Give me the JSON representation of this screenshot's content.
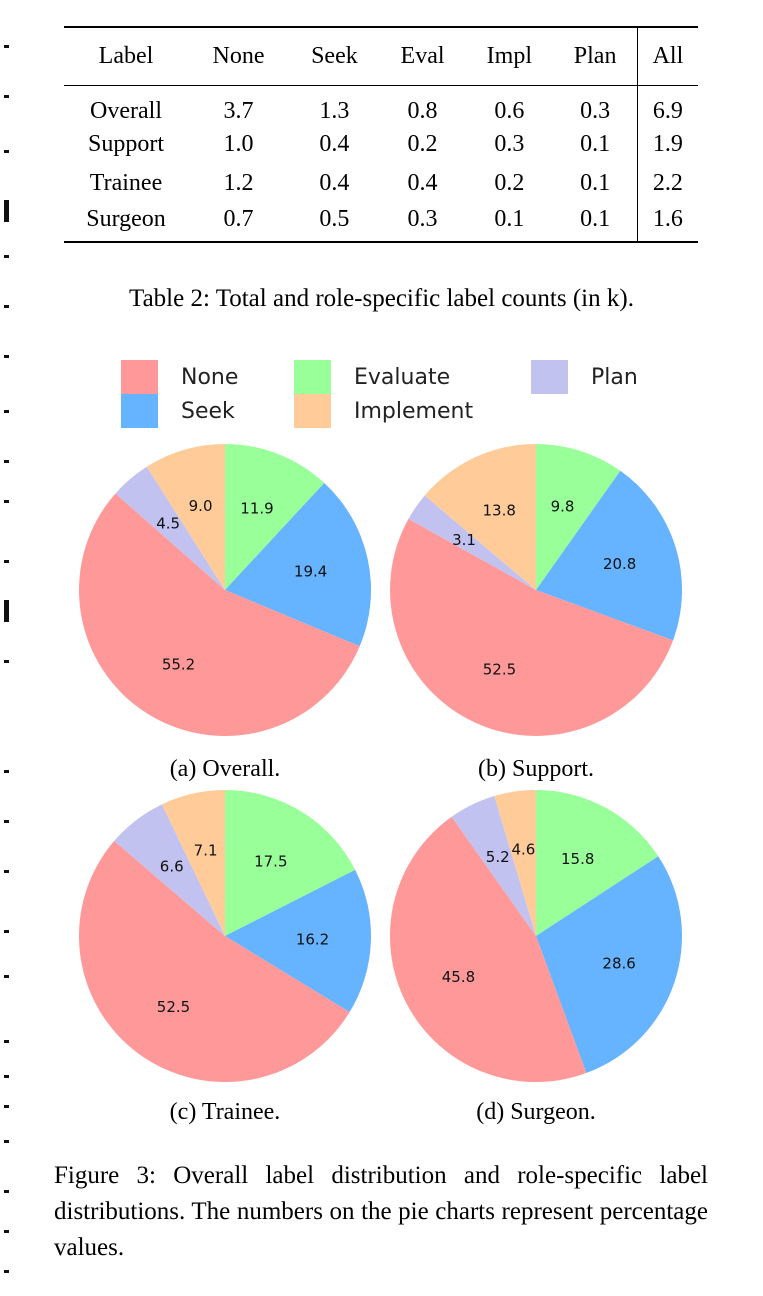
{
  "table": {
    "headers": [
      "Label",
      "None",
      "Seek",
      "Eval",
      "Impl",
      "Plan",
      "All"
    ],
    "rows": [
      [
        "Overall",
        "3.7",
        "1.3",
        "0.8",
        "0.6",
        "0.3",
        "6.9"
      ],
      [
        "Support",
        "1.0",
        "0.4",
        "0.2",
        "0.3",
        "0.1",
        "1.9"
      ],
      [
        "Trainee",
        "1.2",
        "0.4",
        "0.4",
        "0.2",
        "0.1",
        "2.2"
      ],
      [
        "Surgeon",
        "0.7",
        "0.5",
        "0.3",
        "0.1",
        "0.1",
        "1.6"
      ]
    ],
    "caption": "Table 2: Total and role-specific label counts (in k)."
  },
  "legend": [
    {
      "label": "None",
      "color": "#ff9999"
    },
    {
      "label": "Evaluate",
      "color": "#99ff99"
    },
    {
      "label": "Plan",
      "color": "#c2c2f0"
    },
    {
      "label": "Seek",
      "color": "#66b3ff"
    },
    {
      "label": "Implement",
      "color": "#ffcc99"
    }
  ],
  "chart_data": [
    {
      "type": "pie",
      "caption": "(a) Overall.",
      "slices": [
        {
          "name": "Evaluate",
          "value": 11.9,
          "color": "#99ff99"
        },
        {
          "name": "Seek",
          "value": 19.4,
          "color": "#66b3ff"
        },
        {
          "name": "None",
          "value": 55.2,
          "color": "#ff9999"
        },
        {
          "name": "Plan",
          "value": 4.5,
          "color": "#c2c2f0"
        },
        {
          "name": "Implement",
          "value": 9.0,
          "color": "#ffcc99"
        }
      ]
    },
    {
      "type": "pie",
      "caption": "(b) Support.",
      "slices": [
        {
          "name": "Evaluate",
          "value": 9.8,
          "color": "#99ff99"
        },
        {
          "name": "Seek",
          "value": 20.8,
          "color": "#66b3ff"
        },
        {
          "name": "None",
          "value": 52.5,
          "color": "#ff9999"
        },
        {
          "name": "Plan",
          "value": 3.1,
          "color": "#c2c2f0"
        },
        {
          "name": "Implement",
          "value": 13.8,
          "color": "#ffcc99"
        }
      ]
    },
    {
      "type": "pie",
      "caption": "(c) Trainee.",
      "slices": [
        {
          "name": "Evaluate",
          "value": 17.5,
          "color": "#99ff99"
        },
        {
          "name": "Seek",
          "value": 16.2,
          "color": "#66b3ff"
        },
        {
          "name": "None",
          "value": 52.5,
          "color": "#ff9999"
        },
        {
          "name": "Plan",
          "value": 6.6,
          "color": "#c2c2f0"
        },
        {
          "name": "Implement",
          "value": 7.1,
          "color": "#ffcc99"
        }
      ]
    },
    {
      "type": "pie",
      "caption": "(d) Surgeon.",
      "slices": [
        {
          "name": "Evaluate",
          "value": 15.8,
          "color": "#99ff99"
        },
        {
          "name": "Seek",
          "value": 28.6,
          "color": "#66b3ff"
        },
        {
          "name": "None",
          "value": 45.8,
          "color": "#ff9999"
        },
        {
          "name": "Plan",
          "value": 5.2,
          "color": "#c2c2f0"
        },
        {
          "name": "Implement",
          "value": 4.6,
          "color": "#ffcc99"
        }
      ]
    }
  ],
  "figure_caption": "Figure 3: Overall label distribution and role-specific label distributions. The numbers on the pie charts represent percentage values."
}
